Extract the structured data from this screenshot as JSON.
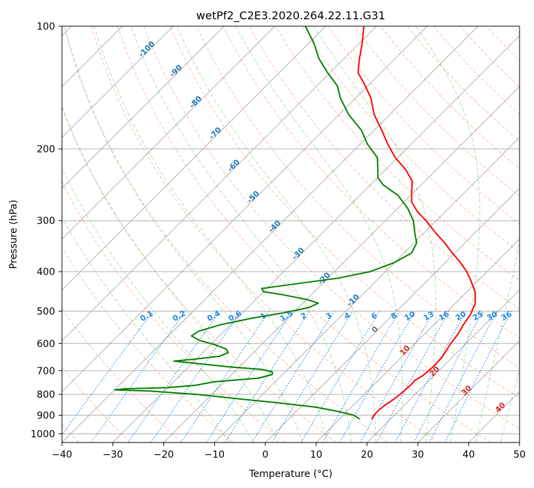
{
  "chart_data": {
    "type": "line",
    "title": "wetPf2_C2E3.2020.264.22.11.G31",
    "xlabel": "Temperature (°C)",
    "ylabel": "Pressure (hPa)",
    "xlim": [
      -40,
      50
    ],
    "ylim": [
      1050,
      100
    ],
    "y_scale": "log",
    "grid": true,
    "x_ticks": [
      -40,
      -30,
      -20,
      -10,
      0,
      10,
      20,
      30,
      40,
      50
    ],
    "y_ticks": [
      100,
      200,
      300,
      400,
      500,
      600,
      700,
      800,
      900,
      1000
    ],
    "skew": "skew-T log-p",
    "series": [
      {
        "key": "temperature",
        "color": "#ff0000",
        "points": [
          [
            920,
            16.3
          ],
          [
            900,
            16.0
          ],
          [
            880,
            15.9
          ],
          [
            850,
            16.2
          ],
          [
            820,
            16.8
          ],
          [
            790,
            17.1
          ],
          [
            760,
            17.3
          ],
          [
            740,
            17.2
          ],
          [
            720,
            17.8
          ],
          [
            700,
            18.0
          ],
          [
            680,
            18.1
          ],
          [
            650,
            18.0
          ],
          [
            620,
            17.4
          ],
          [
            600,
            17.0
          ],
          [
            570,
            16.6
          ],
          [
            540,
            15.8
          ],
          [
            510,
            15.2
          ],
          [
            480,
            14.0
          ],
          [
            450,
            11.8
          ],
          [
            420,
            8.5
          ],
          [
            400,
            6.0
          ],
          [
            380,
            3.0
          ],
          [
            360,
            -0.5
          ],
          [
            340,
            -4.0
          ],
          [
            320,
            -8.0
          ],
          [
            300,
            -12.0
          ],
          [
            285,
            -15.5
          ],
          [
            270,
            -18.5
          ],
          [
            255,
            -20.5
          ],
          [
            240,
            -22.5
          ],
          [
            225,
            -26.0
          ],
          [
            210,
            -30.5
          ],
          [
            195,
            -34.5
          ],
          [
            180,
            -38.5
          ],
          [
            165,
            -43.0
          ],
          [
            150,
            -47.0
          ],
          [
            140,
            -50.5
          ],
          [
            130,
            -54.5
          ],
          [
            120,
            -57.0
          ],
          [
            110,
            -59.5
          ],
          [
            100,
            -62.5
          ]
        ]
      },
      {
        "key": "dewpoint",
        "color": "#008000",
        "points": [
          [
            920,
            14.0
          ],
          [
            900,
            12.0
          ],
          [
            880,
            8.0
          ],
          [
            860,
            3.0
          ],
          [
            840,
            -5.0
          ],
          [
            820,
            -14.0
          ],
          [
            800,
            -23.0
          ],
          [
            785,
            -33.0
          ],
          [
            780,
            -40.0
          ],
          [
            775,
            -38.0
          ],
          [
            770,
            -30.0
          ],
          [
            760,
            -25.0
          ],
          [
            745,
            -22.0
          ],
          [
            730,
            -14.0
          ],
          [
            715,
            -12.0
          ],
          [
            705,
            -12.5
          ],
          [
            695,
            -15.0
          ],
          [
            685,
            -22.0
          ],
          [
            670,
            -30.0
          ],
          [
            663,
            -34.0
          ],
          [
            655,
            -30.0
          ],
          [
            645,
            -26.0
          ],
          [
            632,
            -25.0
          ],
          [
            620,
            -26.0
          ],
          [
            605,
            -29.0
          ],
          [
            590,
            -33.0
          ],
          [
            575,
            -35.5
          ],
          [
            560,
            -35.0
          ],
          [
            540,
            -32.0
          ],
          [
            520,
            -27.0
          ],
          [
            505,
            -22.0
          ],
          [
            490,
            -18.0
          ],
          [
            478,
            -17.0
          ],
          [
            468,
            -20.0
          ],
          [
            455,
            -26.0
          ],
          [
            448,
            -30.0
          ],
          [
            440,
            -31.0
          ],
          [
            430,
            -26.0
          ],
          [
            415,
            -18.0
          ],
          [
            400,
            -13.0
          ],
          [
            380,
            -10.0
          ],
          [
            360,
            -8.5
          ],
          [
            340,
            -9.5
          ],
          [
            320,
            -12.0
          ],
          [
            300,
            -14.5
          ],
          [
            280,
            -18.0
          ],
          [
            260,
            -22.5
          ],
          [
            245,
            -27.5
          ],
          [
            235,
            -30.0
          ],
          [
            225,
            -31.5
          ],
          [
            210,
            -34.0
          ],
          [
            195,
            -38.5
          ],
          [
            180,
            -42.5
          ],
          [
            165,
            -48.0
          ],
          [
            150,
            -53.0
          ],
          [
            140,
            -56.0
          ],
          [
            130,
            -60.5
          ],
          [
            120,
            -65.0
          ],
          [
            110,
            -69.0
          ],
          [
            100,
            -74.0
          ]
        ]
      }
    ],
    "dry_adiabats": [
      -40,
      -30,
      -20,
      -10,
      0,
      10,
      20,
      30,
      40,
      50,
      60,
      70,
      80,
      90,
      100,
      110,
      120,
      130,
      140,
      150,
      160,
      170,
      180,
      190,
      200
    ],
    "moist_adiabats": [
      -10,
      -5,
      0,
      5,
      10,
      15,
      20,
      25,
      30,
      35,
      40,
      45
    ],
    "mixing_ratios": [
      0.1,
      0.2,
      0.4,
      0.6,
      1,
      1.5,
      2,
      3,
      4,
      6,
      8,
      10,
      13,
      16,
      20,
      25,
      30,
      36
    ],
    "mixing_ratio_labels": [
      "0.1",
      "0.2",
      "0.4",
      "0.6",
      "1",
      "1.5",
      "2",
      "3",
      "4",
      "6",
      "8",
      "10",
      "13",
      "16",
      "20",
      "25",
      "30",
      "36"
    ],
    "isotherm_labels": [
      {
        "text": "-100",
        "t": -100,
        "p": 115
      },
      {
        "text": "-90",
        "t": -90,
        "p": 130
      },
      {
        "text": "-80",
        "t": -80,
        "p": 155
      },
      {
        "text": "-70",
        "t": -70,
        "p": 185
      },
      {
        "text": "-60",
        "t": -60,
        "p": 222
      },
      {
        "text": "-50",
        "t": -50,
        "p": 265
      },
      {
        "text": "-40",
        "t": -40,
        "p": 313
      },
      {
        "text": "-30",
        "t": -30,
        "p": 365
      },
      {
        "text": "-20",
        "t": -20,
        "p": 420
      },
      {
        "text": "-10",
        "t": -10,
        "p": 475
      }
    ],
    "theta_labels": [
      {
        "text": "0",
        "t": 0,
        "p": 560,
        "color": "#707070"
      },
      {
        "text": "10",
        "t": 10,
        "p": 630,
        "color": "#d62728"
      },
      {
        "text": "20",
        "t": 20,
        "p": 710,
        "color": "#d62728"
      },
      {
        "text": "30",
        "t": 30,
        "p": 790,
        "color": "#d62728"
      },
      {
        "text": "40",
        "t": 40,
        "p": 870,
        "color": "#d62728"
      }
    ],
    "colors": {
      "temperature": "#ff0000",
      "dewpoint": "#008000",
      "grid": "#b0b0b0",
      "dry_adiabat": "#ff7f50",
      "moist_adiabat": "#2ca02c",
      "mixing_ratio": "#1e88e5",
      "isotherm_label": "#1f77b4"
    }
  }
}
